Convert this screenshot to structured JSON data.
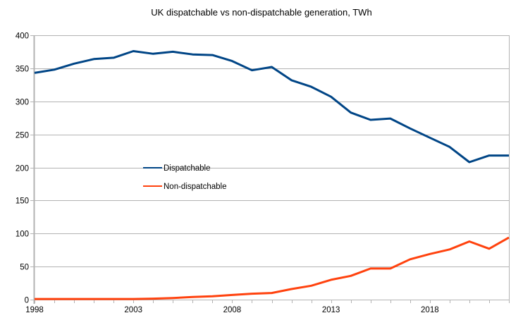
{
  "chart_data": {
    "type": "line",
    "title": "UK dispatchable vs non-dispatchable generation, TWh",
    "xlabel": "",
    "ylabel": "",
    "x": [
      1998,
      1999,
      2000,
      2001,
      2002,
      2003,
      2004,
      2005,
      2006,
      2007,
      2008,
      2009,
      2010,
      2011,
      2012,
      2013,
      2014,
      2015,
      2016,
      2017,
      2018,
      2019,
      2020,
      2021,
      2022
    ],
    "x_tick_labels": [
      "1998",
      "2003",
      "2008",
      "2013",
      "2018"
    ],
    "x_tick_label_years": [
      1998,
      2003,
      2008,
      2013,
      2018
    ],
    "xlim": [
      1998,
      2022
    ],
    "ylim": [
      0,
      400
    ],
    "y_ticks": [
      0,
      50,
      100,
      150,
      200,
      250,
      300,
      350,
      400
    ],
    "grid": true,
    "legend_position": "center-left (inside plot)",
    "series": [
      {
        "name": "Dispatchable",
        "color": "#004586",
        "values": [
          343,
          348,
          357,
          364,
          366,
          376,
          372,
          375,
          371,
          370,
          361,
          347,
          352,
          332,
          322,
          307,
          283,
          272,
          274,
          259,
          245,
          231,
          208,
          218,
          218
        ]
      },
      {
        "name": "Non-dispatchable",
        "color": "#ff420e",
        "values": [
          1,
          1,
          1,
          1,
          1,
          1,
          1.5,
          2.5,
          4,
          5,
          7,
          9,
          10,
          16,
          21,
          30,
          36,
          47,
          47,
          61,
          69,
          76,
          88,
          77,
          94
        ]
      }
    ]
  },
  "colors": {
    "grid": "#b3b3b3",
    "axis": "#b3b3b3"
  }
}
